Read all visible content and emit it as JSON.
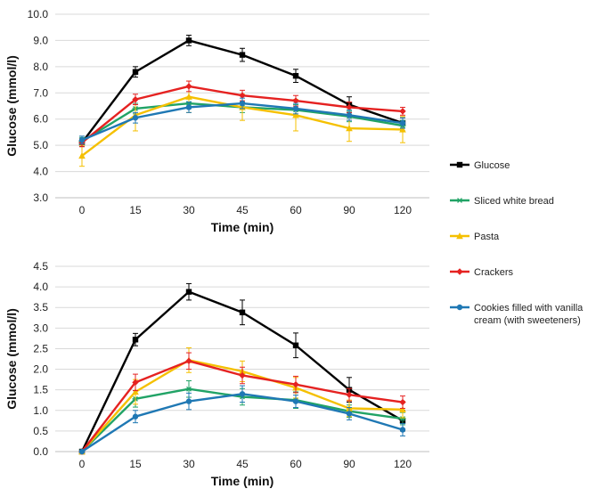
{
  "chart_data": [
    {
      "type": "line",
      "categories": [
        "0",
        "15",
        "30",
        "45",
        "60",
        "90",
        "120"
      ],
      "xlabel": "Time (min)",
      "ylabel": "Glucose (mmol/l)",
      "ylim": [
        3.0,
        10.0
      ],
      "yticks": [
        "3.0",
        "4.0",
        "5.0",
        "6.0",
        "7.0",
        "8.0",
        "9.0",
        "10.0"
      ],
      "grid": true,
      "series": [
        {
          "name": "Glucose",
          "values": [
            5.1,
            7.8,
            9.0,
            8.45,
            7.65,
            6.55,
            5.85
          ],
          "errors": [
            0.15,
            0.2,
            0.2,
            0.25,
            0.25,
            0.3,
            0.2
          ]
        },
        {
          "name": "Sliced white bread",
          "values": [
            5.15,
            6.4,
            6.6,
            6.45,
            6.35,
            6.1,
            5.75
          ],
          "errors": [
            0.15,
            0.2,
            0.2,
            0.2,
            0.2,
            0.2,
            0.2
          ]
        },
        {
          "name": "Pasta",
          "values": [
            4.6,
            6.15,
            6.85,
            6.45,
            6.15,
            5.65,
            5.6
          ],
          "errors": [
            0.4,
            0.6,
            0.6,
            0.5,
            0.6,
            0.5,
            0.5
          ]
        },
        {
          "name": "Crackers",
          "values": [
            5.1,
            6.75,
            7.25,
            6.9,
            6.7,
            6.45,
            6.3
          ],
          "errors": [
            0.15,
            0.2,
            0.2,
            0.2,
            0.2,
            0.2,
            0.15
          ]
        },
        {
          "name": "Cookies filled with vanilla cream (with sweeteners)",
          "values": [
            5.2,
            6.05,
            6.45,
            6.6,
            6.4,
            6.15,
            5.85
          ],
          "errors": [
            0.15,
            0.2,
            0.2,
            0.2,
            0.2,
            0.2,
            0.2
          ]
        }
      ]
    },
    {
      "type": "line",
      "categories": [
        "0",
        "15",
        "30",
        "45",
        "60",
        "90",
        "120"
      ],
      "xlabel": "Time (min)",
      "ylabel": "Glucose (mmol/l)",
      "ylim": [
        0.0,
        4.5
      ],
      "yticks": [
        "0.0",
        "0.5",
        "1.0",
        "1.5",
        "2.0",
        "2.5",
        "3.0",
        "3.5",
        "4.0",
        "4.5"
      ],
      "grid": true,
      "series": [
        {
          "name": "Glucose",
          "values": [
            0.0,
            2.72,
            3.88,
            3.38,
            2.58,
            1.5,
            0.75
          ],
          "errors": [
            0.0,
            0.15,
            0.2,
            0.3,
            0.3,
            0.3,
            0.25
          ]
        },
        {
          "name": "Sliced white bread",
          "values": [
            0.0,
            1.28,
            1.52,
            1.33,
            1.25,
            0.98,
            0.8
          ],
          "errors": [
            0.0,
            0.2,
            0.2,
            0.2,
            0.2,
            0.15,
            0.15
          ]
        },
        {
          "name": "Pasta",
          "values": [
            0.0,
            1.45,
            2.22,
            1.95,
            1.55,
            1.05,
            1.02
          ],
          "errors": [
            0.0,
            0.3,
            0.3,
            0.25,
            0.25,
            0.2,
            0.2
          ]
        },
        {
          "name": "Crackers",
          "values": [
            0.0,
            1.68,
            2.2,
            1.85,
            1.63,
            1.38,
            1.2
          ],
          "errors": [
            0.0,
            0.2,
            0.2,
            0.2,
            0.2,
            0.15,
            0.15
          ]
        },
        {
          "name": "Cookies filled with vanilla cream (with sweeteners)",
          "values": [
            0.0,
            0.85,
            1.22,
            1.4,
            1.22,
            0.92,
            0.53
          ],
          "errors": [
            0.0,
            0.15,
            0.2,
            0.2,
            0.15,
            0.15,
            0.15
          ]
        }
      ]
    }
  ],
  "legend": {
    "placement": "right",
    "items": [
      {
        "label": "Glucose",
        "color": "#000000",
        "marker": "square"
      },
      {
        "label": "Sliced white bread",
        "color": "#21a366",
        "marker": "asterisk"
      },
      {
        "label": "Pasta",
        "color": "#f5c000",
        "marker": "triangle"
      },
      {
        "label": "Crackers",
        "color": "#e52221",
        "marker": "diamond"
      },
      {
        "label_lines": [
          "Cookies filled with vanilla",
          "cream (with sweeteners)"
        ],
        "label": "Cookies filled with vanilla cream (with sweeteners)",
        "color": "#1f78b4",
        "marker": "circle"
      }
    ]
  },
  "colors": [
    "#000000",
    "#21a366",
    "#f5c000",
    "#e52221",
    "#1f78b4"
  ],
  "markers": [
    "square",
    "asterisk",
    "triangle",
    "diamond",
    "circle"
  ]
}
